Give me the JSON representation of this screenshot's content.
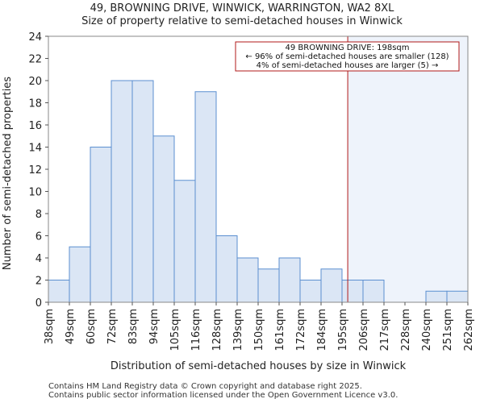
{
  "header": {
    "title": "49, BROWNING DRIVE, WINWICK, WARRINGTON, WA2 8XL",
    "subtitle": "Size of property relative to semi-detached houses in Winwick"
  },
  "chart_data": {
    "type": "bar",
    "xlabel": "Distribution of semi-detached houses by size in Winwick",
    "ylabel": "Number of semi-detached properties",
    "ylim": [
      0,
      24
    ],
    "yticks": [
      0,
      2,
      4,
      6,
      8,
      10,
      12,
      14,
      16,
      18,
      20,
      22,
      24
    ],
    "bin_edges_labels": [
      "38sqm",
      "49sqm",
      "60sqm",
      "72sqm",
      "83sqm",
      "94sqm",
      "105sqm",
      "116sqm",
      "128sqm",
      "139sqm",
      "150sqm",
      "161sqm",
      "172sqm",
      "184sqm",
      "195sqm",
      "206sqm",
      "217sqm",
      "228sqm",
      "240sqm",
      "251sqm",
      "262sqm"
    ],
    "values": [
      2,
      5,
      14,
      20,
      20,
      15,
      11,
      19,
      6,
      4,
      3,
      4,
      2,
      3,
      2,
      2,
      0,
      0,
      1,
      1
    ],
    "bar_color": "#dbe6f5",
    "bar_edge_color": "#5b8fd0",
    "marker": {
      "value_sqm": 198,
      "color": "#b01919",
      "highlight_color": "#eef3fb"
    },
    "annotation": {
      "line1": "49 BROWNING DRIVE: 198sqm",
      "line2": "← 96% of semi-detached houses are smaller (128)",
      "line3": "4% of semi-detached houses are larger (5) →"
    }
  },
  "footer": {
    "line1": "Contains HM Land Registry data © Crown copyright and database right 2025.",
    "line2": "Contains public sector information licensed under the Open Government Licence v3.0."
  }
}
